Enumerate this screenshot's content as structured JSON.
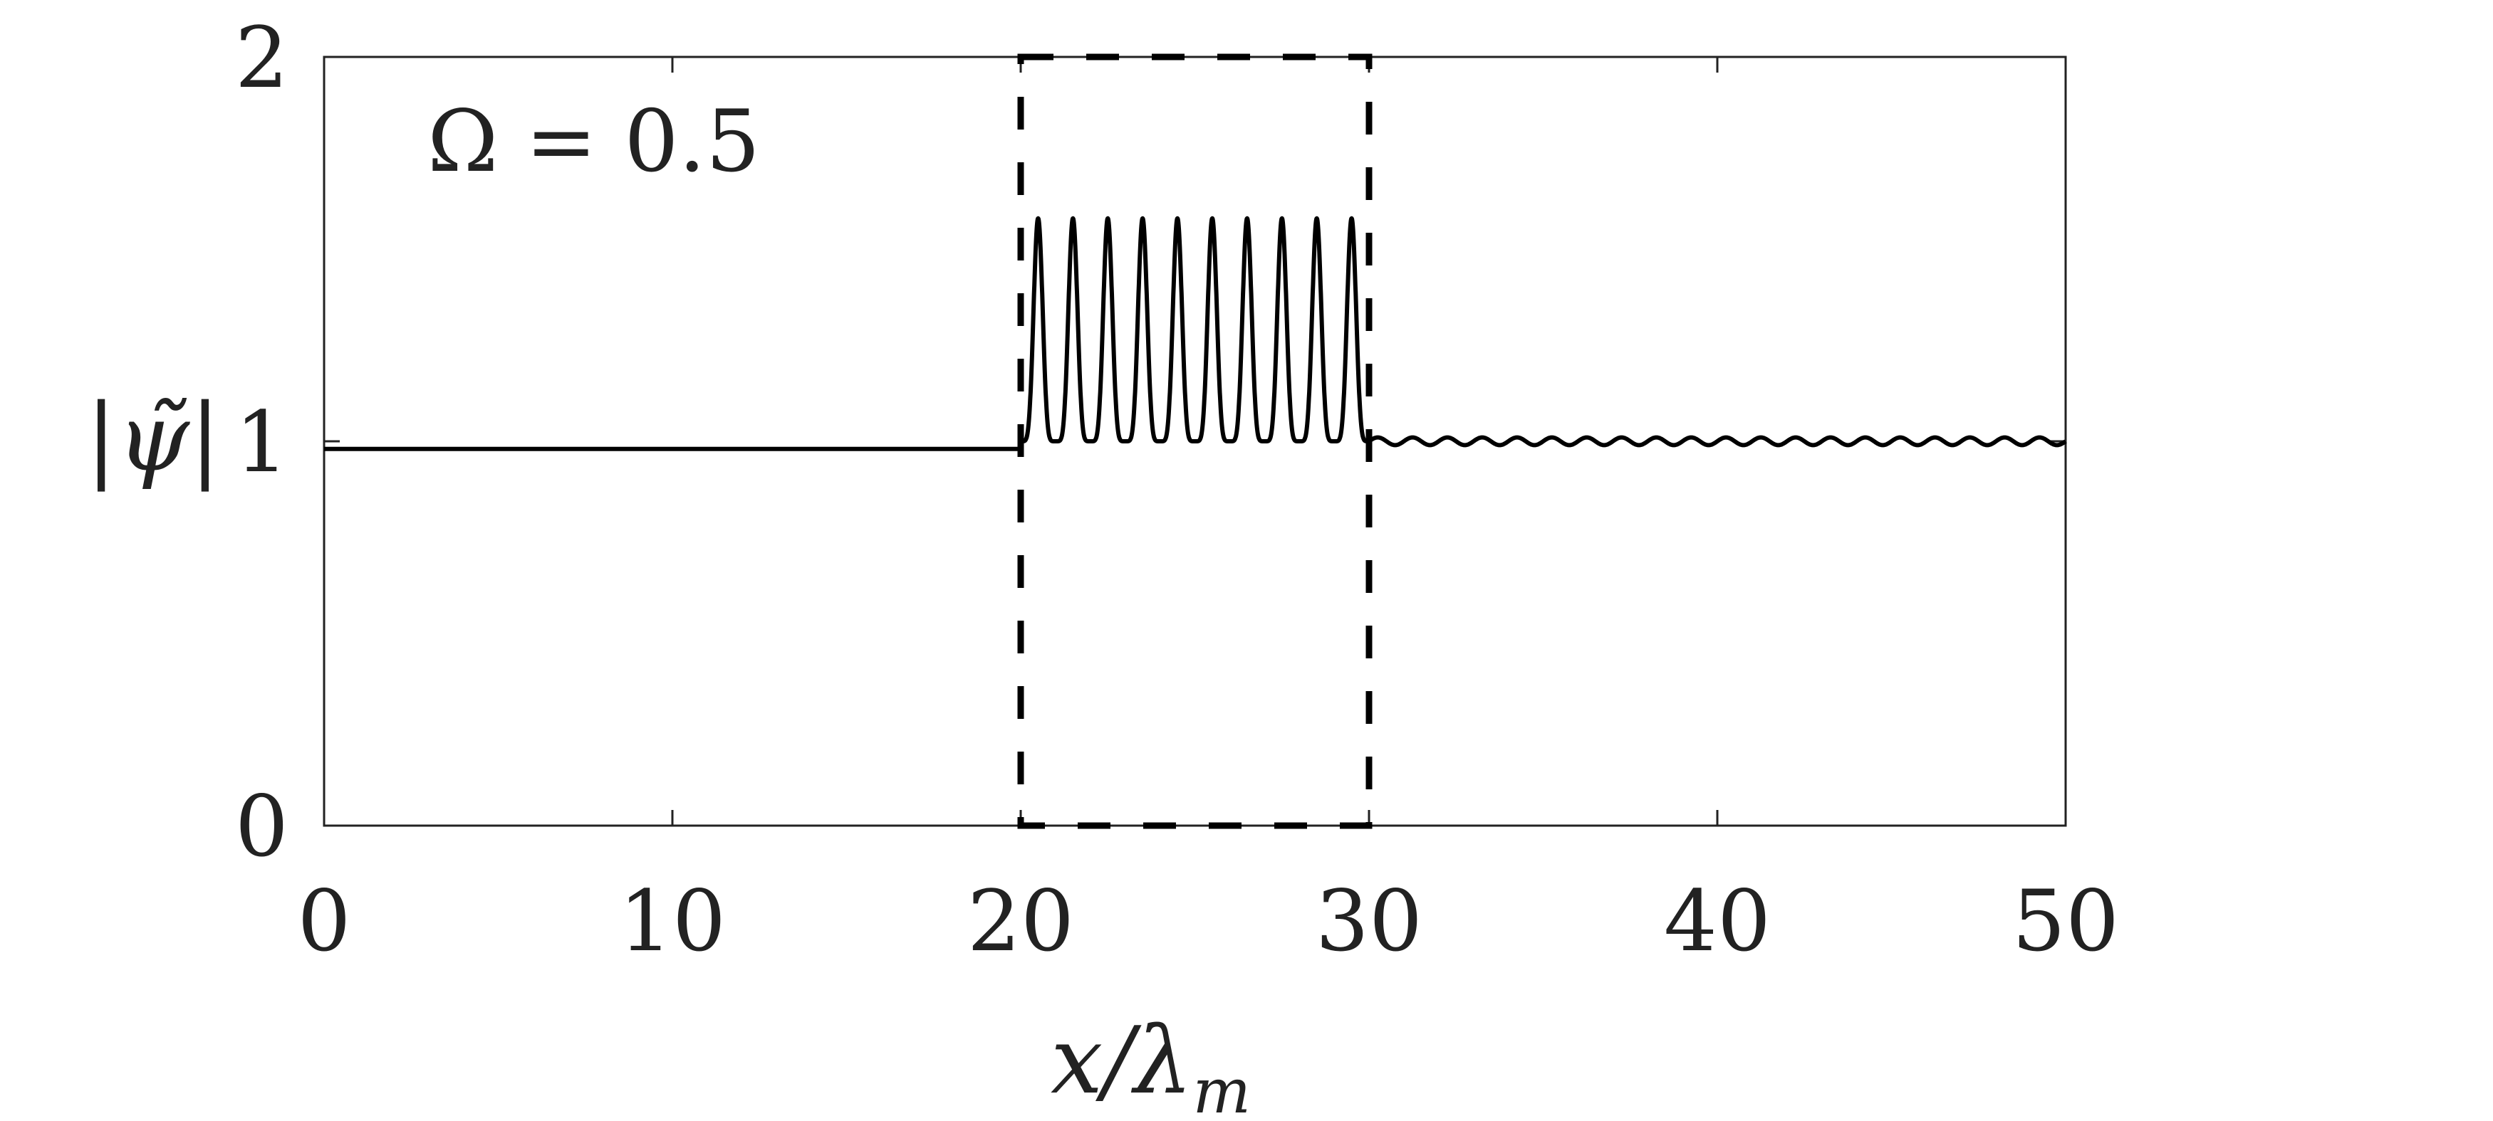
{
  "chart_data": {
    "type": "line",
    "title": "",
    "xlabel": "x/λ",
    "xlabel_sub": "m",
    "ylabel": "|ψ̃|",
    "xlim": [
      0,
      50
    ],
    "ylim": [
      0,
      2
    ],
    "x_ticks": [
      0,
      10,
      20,
      30,
      40,
      50
    ],
    "x_tick_labels": [
      "0",
      "10",
      "20",
      "30",
      "40",
      "50"
    ],
    "y_ticks": [
      0,
      1,
      2
    ],
    "y_tick_labels": [
      "0",
      "1",
      "2"
    ],
    "grid": false,
    "annotation": "Ω = 0.5",
    "region": {
      "x_start": 20,
      "x_end": 30,
      "y_start": 0,
      "y_end": 2,
      "style": "dashed"
    },
    "series": [
      {
        "segments": [
          {
            "x_range": [
              0,
              20
            ],
            "behavior": "constant",
            "level": 0.98
          },
          {
            "x_range": [
              20,
              30
            ],
            "behavior": "oscillation",
            "baseline": 1.0,
            "peak": 1.58,
            "peak_count": 10
          },
          {
            "x_range": [
              30,
              50
            ],
            "behavior": "ripple",
            "baseline": 1.0,
            "amplitude": 0.01,
            "cycles": 20
          }
        ]
      }
    ]
  }
}
